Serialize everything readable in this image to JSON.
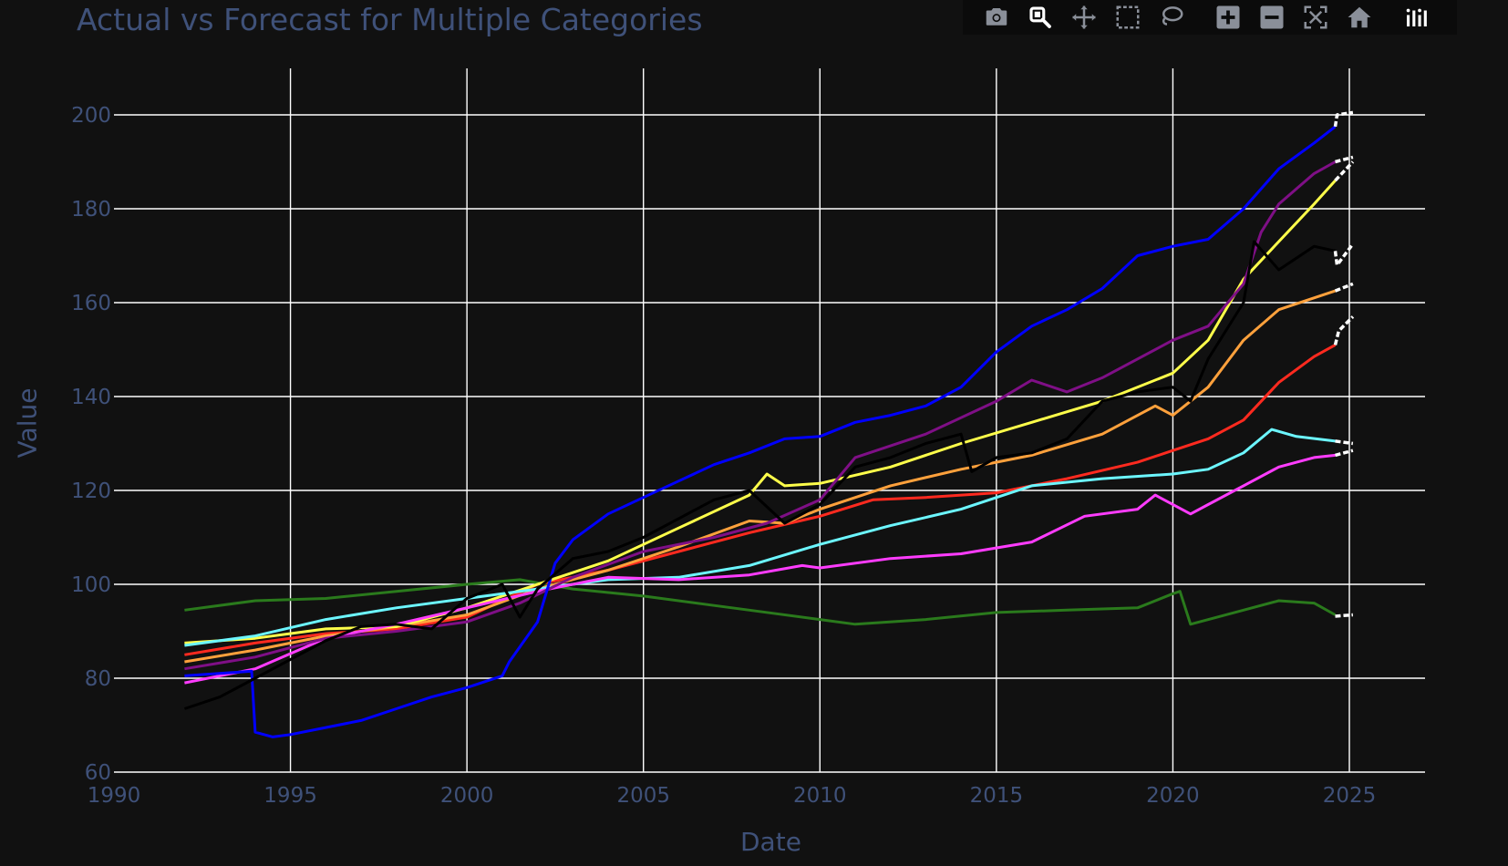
{
  "title": "Actual vs Forecast for Multiple Categories",
  "modebar": [
    {
      "name": "camera-icon"
    },
    {
      "name": "zoom-icon"
    },
    {
      "name": "pan-icon"
    },
    {
      "name": "box-select-icon"
    },
    {
      "name": "lasso-select-icon"
    },
    {
      "name": "zoom-in-icon"
    },
    {
      "name": "zoom-out-icon"
    },
    {
      "name": "autoscale-icon"
    },
    {
      "name": "reset-axes-home-icon"
    },
    {
      "name": "plotly-logo-icon"
    }
  ],
  "chart_data": {
    "type": "line",
    "title": "Actual vs Forecast for Multiple Categories",
    "xlabel": "Date",
    "ylabel": "Value",
    "xlim": [
      1990,
      2027
    ],
    "ylim": [
      60,
      210
    ],
    "xticks": [
      "1990",
      "1995",
      "2000",
      "2005",
      "2010",
      "2015",
      "2020",
      "2025"
    ],
    "yticks": [
      "60",
      "80",
      "100",
      "120",
      "140",
      "160",
      "180",
      "200"
    ],
    "grid": true,
    "legend": "none",
    "series": [
      {
        "color": "#2a7a1c",
        "kind": "actual",
        "x": [
          1992.0,
          1994.0,
          1996.0,
          1998.0,
          2000.0,
          2001.5,
          2003.0,
          2005.0,
          2007.0,
          2008.0,
          2010.0,
          2011.0,
          2013.0,
          2015.0,
          2017.0,
          2019.0,
          2020.0,
          2020.2,
          2020.5,
          2022.0,
          2023.0,
          2024.0,
          2024.6
        ],
        "y": [
          94.5,
          96.5,
          97.0,
          98.5,
          100.0,
          101.0,
          99.0,
          97.5,
          95.5,
          94.5,
          92.5,
          91.5,
          92.5,
          94.0,
          94.5,
          95.0,
          98.0,
          98.5,
          91.5,
          94.5,
          96.5,
          96.0,
          93.5
        ]
      },
      {
        "color": "#ffffff",
        "kind": "forecast",
        "x": [
          2024.6,
          2025.1
        ],
        "y": [
          93.2,
          93.5
        ]
      },
      {
        "color": "#ff2a1f",
        "kind": "actual",
        "x": [
          1992.0,
          1994.0,
          1996.0,
          1998.0,
          2000.0,
          2002.0,
          2004.0,
          2006.0,
          2008.0,
          2010.0,
          2011.5,
          2013.0,
          2015.0,
          2017.0,
          2019.0,
          2020.0,
          2021.0,
          2022.0,
          2023.0,
          2024.0,
          2024.6
        ],
        "y": [
          85.0,
          87.5,
          89.5,
          90.5,
          93.0,
          100.0,
          103.0,
          107.0,
          111.0,
          114.5,
          118.0,
          118.5,
          119.5,
          122.5,
          126.0,
          128.5,
          131.0,
          135.0,
          143.0,
          148.5,
          151.0
        ]
      },
      {
        "color": "#ffffff",
        "kind": "forecast",
        "x": [
          2024.6,
          2024.7,
          2025.1
        ],
        "y": [
          151.0,
          154.0,
          157.0
        ]
      },
      {
        "color": "#ffa13c",
        "kind": "actual",
        "x": [
          1992.0,
          1994.0,
          1996.0,
          1998.0,
          2000.0,
          2002.0,
          2004.0,
          2006.0,
          2008.0,
          2009.0,
          2010.0,
          2012.0,
          2014.0,
          2016.0,
          2018.0,
          2019.5,
          2020.0,
          2021.0,
          2022.0,
          2023.0,
          2024.6
        ],
        "y": [
          83.5,
          86.0,
          89.0,
          91.0,
          93.5,
          99.0,
          103.0,
          108.0,
          113.5,
          113.0,
          116.0,
          121.0,
          124.5,
          127.5,
          132.0,
          138.0,
          136.0,
          142.0,
          152.0,
          158.5,
          162.5
        ]
      },
      {
        "color": "#ffffff",
        "kind": "forecast",
        "x": [
          2024.6,
          2025.1
        ],
        "y": [
          162.5,
          164.0
        ]
      },
      {
        "color": "#ffff4a",
        "kind": "actual",
        "x": [
          1992.0,
          1994.0,
          1996.0,
          1998.0,
          2000.0,
          2002.0,
          2004.0,
          2006.0,
          2008.0,
          2008.5,
          2009.0,
          2010.0,
          2012.0,
          2014.0,
          2016.0,
          2018.0,
          2020.0,
          2021.0,
          2022.0,
          2023.0,
          2024.0,
          2024.6
        ],
        "y": [
          87.5,
          88.5,
          90.5,
          91.0,
          95.0,
          100.0,
          105.0,
          112.0,
          119.0,
          123.5,
          121.0,
          121.5,
          125.0,
          130.0,
          134.5,
          139.0,
          145.0,
          152.0,
          165.0,
          173.0,
          181.0,
          186.0
        ]
      },
      {
        "color": "#ffffff",
        "kind": "forecast",
        "x": [
          2024.6,
          2025.1
        ],
        "y": [
          186.0,
          190.0
        ]
      },
      {
        "color": "#6cf6ff",
        "kind": "actual",
        "x": [
          1992.0,
          1994.0,
          1996.0,
          1998.0,
          2000.0,
          2002.0,
          2004.0,
          2006.0,
          2008.0,
          2010.0,
          2012.0,
          2014.0,
          2016.0,
          2018.0,
          2020.0,
          2021.0,
          2022.0,
          2022.8,
          2023.5,
          2024.6
        ],
        "y": [
          87.0,
          89.0,
          92.5,
          95.0,
          97.0,
          99.0,
          101.0,
          101.5,
          104.0,
          108.5,
          112.5,
          116.0,
          121.0,
          122.5,
          123.5,
          124.5,
          128.0,
          133.0,
          131.5,
          130.5
        ]
      },
      {
        "color": "#ffffff",
        "kind": "forecast",
        "x": [
          2024.6,
          2025.1
        ],
        "y": [
          130.5,
          130.0
        ]
      },
      {
        "color": "#ff3cff",
        "kind": "actual",
        "x": [
          1992.0,
          1994.0,
          1996.0,
          1998.0,
          2000.0,
          2002.0,
          2004.0,
          2006.0,
          2008.0,
          2009.5,
          2010.0,
          2012.0,
          2014.0,
          2016.0,
          2017.5,
          2019.0,
          2019.5,
          2020.5,
          2021.0,
          2022.0,
          2023.0,
          2024.0,
          2024.6
        ],
        "y": [
          79.0,
          82.0,
          88.5,
          91.5,
          95.0,
          98.5,
          101.5,
          101.0,
          102.0,
          104.0,
          103.5,
          105.5,
          106.5,
          109.0,
          114.5,
          116.0,
          119.0,
          115.0,
          117.0,
          121.0,
          125.0,
          127.0,
          127.5
        ]
      },
      {
        "color": "#ffffff",
        "kind": "forecast",
        "x": [
          2024.6,
          2025.1
        ],
        "y": [
          127.5,
          128.5
        ]
      },
      {
        "color": "#7f0f86",
        "kind": "actual",
        "x": [
          1992.0,
          1994.0,
          1996.0,
          1998.0,
          2000.0,
          2001.5,
          2003.0,
          2005.0,
          2007.0,
          2008.5,
          2010.0,
          2011.0,
          2013.0,
          2015.0,
          2016.0,
          2017.0,
          2018.0,
          2020.0,
          2021.0,
          2022.0,
          2022.5,
          2023.0,
          2024.0,
          2024.6
        ],
        "y": [
          82.0,
          84.5,
          88.5,
          90.0,
          92.0,
          96.0,
          101.5,
          107.0,
          110.0,
          113.0,
          118.0,
          127.0,
          132.0,
          139.0,
          143.5,
          141.0,
          144.0,
          152.0,
          155.0,
          164.0,
          175.0,
          181.0,
          187.5,
          190.0
        ]
      },
      {
        "color": "#ffffff",
        "kind": "forecast",
        "x": [
          2024.6,
          2025.1
        ],
        "y": [
          190.0,
          191.0
        ]
      },
      {
        "color": "#0000ff",
        "kind": "actual",
        "x": [
          1992.0,
          1993.9,
          1994.0,
          1994.5,
          1995.0,
          1996.0,
          1997.0,
          1998.0,
          1999.0,
          2000.0,
          2001.0,
          2001.2,
          2002.0,
          2002.5,
          2003.0,
          2004.0,
          2005.0,
          2006.0,
          2007.0,
          2008.0,
          2009.0,
          2010.0,
          2011.0,
          2012.0,
          2013.0,
          2014.0,
          2015.0,
          2016.0,
          2017.0,
          2018.0,
          2019.0,
          2020.0,
          2021.0,
          2022.0,
          2023.0,
          2024.0,
          2024.6
        ],
        "y": [
          80.5,
          81.5,
          68.5,
          67.5,
          68.0,
          69.5,
          71.0,
          73.5,
          76.0,
          78.0,
          80.5,
          83.5,
          92.0,
          104.5,
          109.5,
          115.0,
          118.5,
          122.0,
          125.5,
          128.0,
          131.0,
          131.5,
          134.5,
          136.0,
          138.0,
          142.0,
          149.5,
          155.0,
          158.5,
          163.0,
          170.0,
          172.0,
          173.5,
          180.0,
          188.5,
          194.0,
          197.5
        ]
      },
      {
        "color": "#ffffff",
        "kind": "forecast",
        "x": [
          2024.6,
          2024.65,
          2025.1
        ],
        "y": [
          197.5,
          200.0,
          200.5
        ]
      },
      {
        "color": "#000000",
        "kind": "actual",
        "x": [
          1992.0,
          1993.0,
          1994.0,
          1995.0,
          1996.0,
          1997.0,
          1998.0,
          1999.0,
          2000.0,
          2001.0,
          2001.5,
          2002.0,
          2003.0,
          2004.0,
          2005.0,
          2006.0,
          2007.0,
          2008.0,
          2009.0,
          2010.0,
          2011.0,
          2012.0,
          2013.0,
          2014.0,
          2014.3,
          2015.0,
          2016.0,
          2017.0,
          2018.0,
          2019.0,
          2020.0,
          2020.5,
          2021.0,
          2022.0,
          2022.3,
          2023.0,
          2024.0,
          2024.6
        ],
        "y": [
          73.5,
          76.0,
          80.0,
          84.0,
          88.0,
          91.0,
          91.5,
          90.5,
          97.0,
          100.0,
          93.0,
          99.0,
          105.5,
          107.0,
          110.0,
          114.0,
          118.0,
          120.0,
          113.0,
          117.0,
          125.0,
          127.0,
          130.0,
          132.0,
          124.0,
          127.0,
          128.0,
          131.0,
          139.0,
          141.0,
          142.0,
          139.0,
          148.0,
          160.0,
          173.0,
          167.0,
          172.0,
          171.0
        ]
      },
      {
        "color": "#ffffff",
        "kind": "forecast",
        "x": [
          2024.6,
          2024.65,
          2025.1
        ],
        "y": [
          171.0,
          168.0,
          172.5
        ]
      }
    ]
  }
}
